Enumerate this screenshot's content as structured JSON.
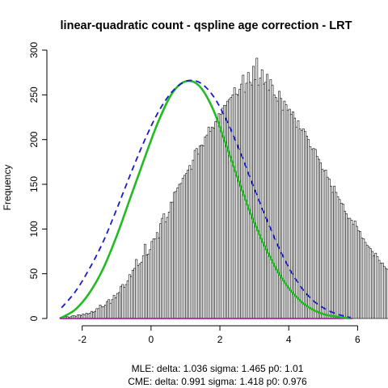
{
  "chart_data": {
    "type": "bar",
    "title": "linear-quadratic count - qspline age correction - LRT",
    "xlabel": "",
    "ylabel": "Frequency",
    "xlim": [
      -2.65,
      5.85
    ],
    "ylim": [
      0,
      300
    ],
    "x_ticks": [
      "-2",
      "0",
      "2",
      "4",
      "6"
    ],
    "y_ticks": [
      "0",
      "50",
      "100",
      "150",
      "200",
      "250",
      "300"
    ],
    "bins": {
      "start": -2.65,
      "width": 0.05,
      "counts": [
        1,
        1,
        2,
        2,
        2,
        1,
        2,
        3,
        3,
        2,
        4,
        4,
        3,
        5,
        4,
        6,
        5,
        6,
        8,
        7,
        8,
        11,
        11,
        15,
        13,
        13,
        15,
        19,
        21,
        17,
        21,
        26,
        23,
        28,
        29,
        36,
        38,
        35,
        38,
        42,
        49,
        47,
        54,
        56,
        66,
        59,
        61,
        63,
        70,
        83,
        71,
        72,
        77,
        86,
        89,
        89,
        96,
        90,
        106,
        112,
        117,
        108,
        113,
        119,
        130,
        130,
        141,
        142,
        146,
        150,
        151,
        157,
        160,
        162,
        166,
        171,
        167,
        177,
        188,
        190,
        184,
        193,
        194,
        193,
        203,
        205,
        214,
        209,
        214,
        213,
        220,
        223,
        229,
        228,
        235,
        238,
        238,
        243,
        245,
        247,
        250,
        258,
        251,
        250,
        256,
        262,
        272,
        253,
        263,
        275,
        264,
        261,
        282,
        267,
        291,
        261,
        269,
        278,
        262,
        264,
        273,
        255,
        267,
        261,
        250,
        247,
        243,
        254,
        246,
        233,
        243,
        239,
        233,
        234,
        228,
        231,
        224,
        214,
        221,
        212,
        210,
        212,
        209,
        204,
        200,
        192,
        189,
        190,
        189,
        181,
        178,
        174,
        167,
        165,
        166,
        158,
        156,
        148,
        141,
        148,
        141,
        136,
        133,
        129,
        128,
        120,
        117,
        112,
        112,
        110,
        105,
        109,
        103,
        98,
        97,
        90,
        89,
        85,
        82,
        80,
        78,
        75,
        70,
        73,
        69,
        65,
        62,
        62,
        58,
        56,
        55,
        53,
        49,
        48,
        50,
        45,
        44,
        45,
        40,
        39,
        38,
        36,
        34,
        35,
        33,
        30,
        31,
        29,
        28,
        27,
        25,
        25,
        24,
        22,
        21,
        21,
        20,
        19,
        18,
        17,
        16,
        16,
        15,
        14,
        13,
        12,
        11,
        11,
        11,
        9,
        9,
        8,
        8,
        7,
        7,
        6,
        6,
        5,
        5,
        5,
        4,
        4,
        4,
        3,
        3,
        3,
        3,
        2,
        2,
        2,
        2,
        2,
        1,
        1,
        1,
        1,
        1,
        1,
        1,
        1,
        1,
        1,
        0,
        0,
        0,
        0,
        0,
        0,
        0,
        0,
        0,
        0,
        0
      ]
    },
    "curves": [
      {
        "style": "solid",
        "color": "#22bb22",
        "x": [
          -2.6,
          -2.2,
          -1.8,
          -1.4,
          -1.0,
          -0.6,
          -0.2,
          0.2,
          0.6,
          1.0,
          1.4,
          1.8,
          2.2,
          2.6,
          3.0,
          3.4,
          3.8,
          4.2,
          4.6,
          5.0,
          5.4,
          5.8
        ],
        "y": [
          1,
          10,
          28,
          55,
          92,
          135,
          178,
          219,
          251,
          265,
          260,
          234,
          192,
          148,
          107,
          73,
          45,
          25,
          12,
          5,
          2,
          0
        ]
      },
      {
        "style": "dashed",
        "color": "#1a1acc",
        "x": [
          -2.6,
          -2.2,
          -1.8,
          -1.4,
          -1.0,
          -0.6,
          -0.2,
          0.2,
          0.6,
          1.0,
          1.4,
          1.8,
          2.2,
          2.6,
          3.0,
          3.4,
          3.8,
          4.2,
          4.6,
          5.0,
          5.4,
          5.8
        ],
        "y": [
          12,
          30,
          55,
          85,
          122,
          161,
          198,
          230,
          253,
          265,
          264,
          249,
          221,
          185,
          145,
          107,
          72,
          44,
          24,
          12,
          5,
          1
        ]
      }
    ],
    "baseline_color": "#aa00aa",
    "annotations": [
      "MLE: delta: 1.036 sigma: 1.465 p0: 1.01",
      "CME: delta: 0.991 sigma: 1.418 p0: 0.976"
    ]
  }
}
